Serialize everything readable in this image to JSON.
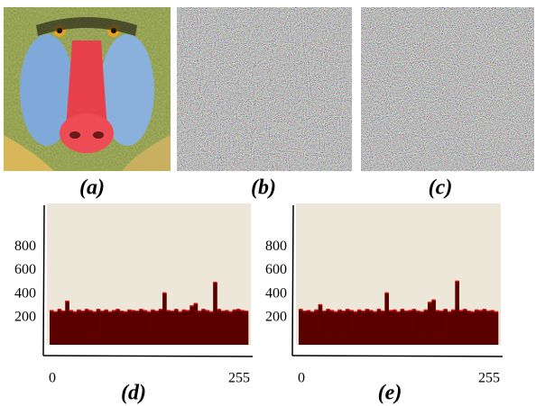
{
  "images": [
    {
      "label": "(a)"
    },
    {
      "label": "(b)"
    },
    {
      "label": "(c)"
    }
  ],
  "chart_data": [
    {
      "type": "histogram",
      "label": "(d)",
      "color": "#5a0000",
      "edge_color": "#e01010",
      "bins": [
        0,
        5,
        10,
        15,
        20,
        25,
        30,
        35,
        40,
        45,
        50,
        55,
        60,
        65,
        70,
        75,
        80,
        85,
        90,
        95,
        100,
        105,
        110,
        115,
        120,
        125,
        130,
        135,
        140,
        145,
        150,
        155,
        160,
        165,
        170,
        175,
        180,
        185,
        190,
        195,
        200,
        205,
        210,
        215,
        220,
        225,
        230,
        235,
        240,
        245,
        250,
        255
      ],
      "values": [
        290,
        280,
        300,
        285,
        370,
        290,
        280,
        295,
        285,
        300,
        290,
        280,
        300,
        285,
        295,
        280,
        290,
        300,
        285,
        280,
        295,
        290,
        285,
        300,
        290,
        280,
        295,
        285,
        300,
        440,
        290,
        285,
        300,
        280,
        295,
        290,
        330,
        350,
        285,
        300,
        290,
        280,
        530,
        300,
        285,
        290,
        280,
        295,
        300,
        290,
        285
      ],
      "ylim": [
        0,
        1200
      ],
      "yticks": [
        200,
        400,
        600,
        800
      ],
      "xlim": [
        0,
        255
      ],
      "xticks": [
        0,
        255
      ]
    },
    {
      "type": "histogram",
      "label": "(e)",
      "color": "#5a0000",
      "edge_color": "#e01010",
      "bins": [
        0,
        5,
        10,
        15,
        20,
        25,
        30,
        35,
        40,
        45,
        50,
        55,
        60,
        65,
        70,
        75,
        80,
        85,
        90,
        95,
        100,
        105,
        110,
        115,
        120,
        125,
        130,
        135,
        140,
        145,
        150,
        155,
        160,
        165,
        170,
        175,
        180,
        185,
        190,
        195,
        200,
        205,
        210,
        215,
        220,
        225,
        230,
        235,
        240,
        245,
        250,
        255
      ],
      "values": [
        300,
        285,
        290,
        280,
        295,
        340,
        285,
        300,
        290,
        280,
        295,
        285,
        300,
        290,
        280,
        295,
        285,
        300,
        290,
        280,
        300,
        285,
        440,
        290,
        295,
        280,
        300,
        285,
        290,
        300,
        285,
        280,
        295,
        360,
        380,
        290,
        285,
        300,
        280,
        295,
        540,
        290,
        300,
        285,
        280,
        295,
        290,
        300,
        285,
        290,
        280
      ],
      "ylim": [
        0,
        1200
      ],
      "yticks": [
        200,
        400,
        600,
        800
      ],
      "xlim": [
        0,
        255
      ],
      "xticks": [
        0,
        255
      ]
    }
  ]
}
